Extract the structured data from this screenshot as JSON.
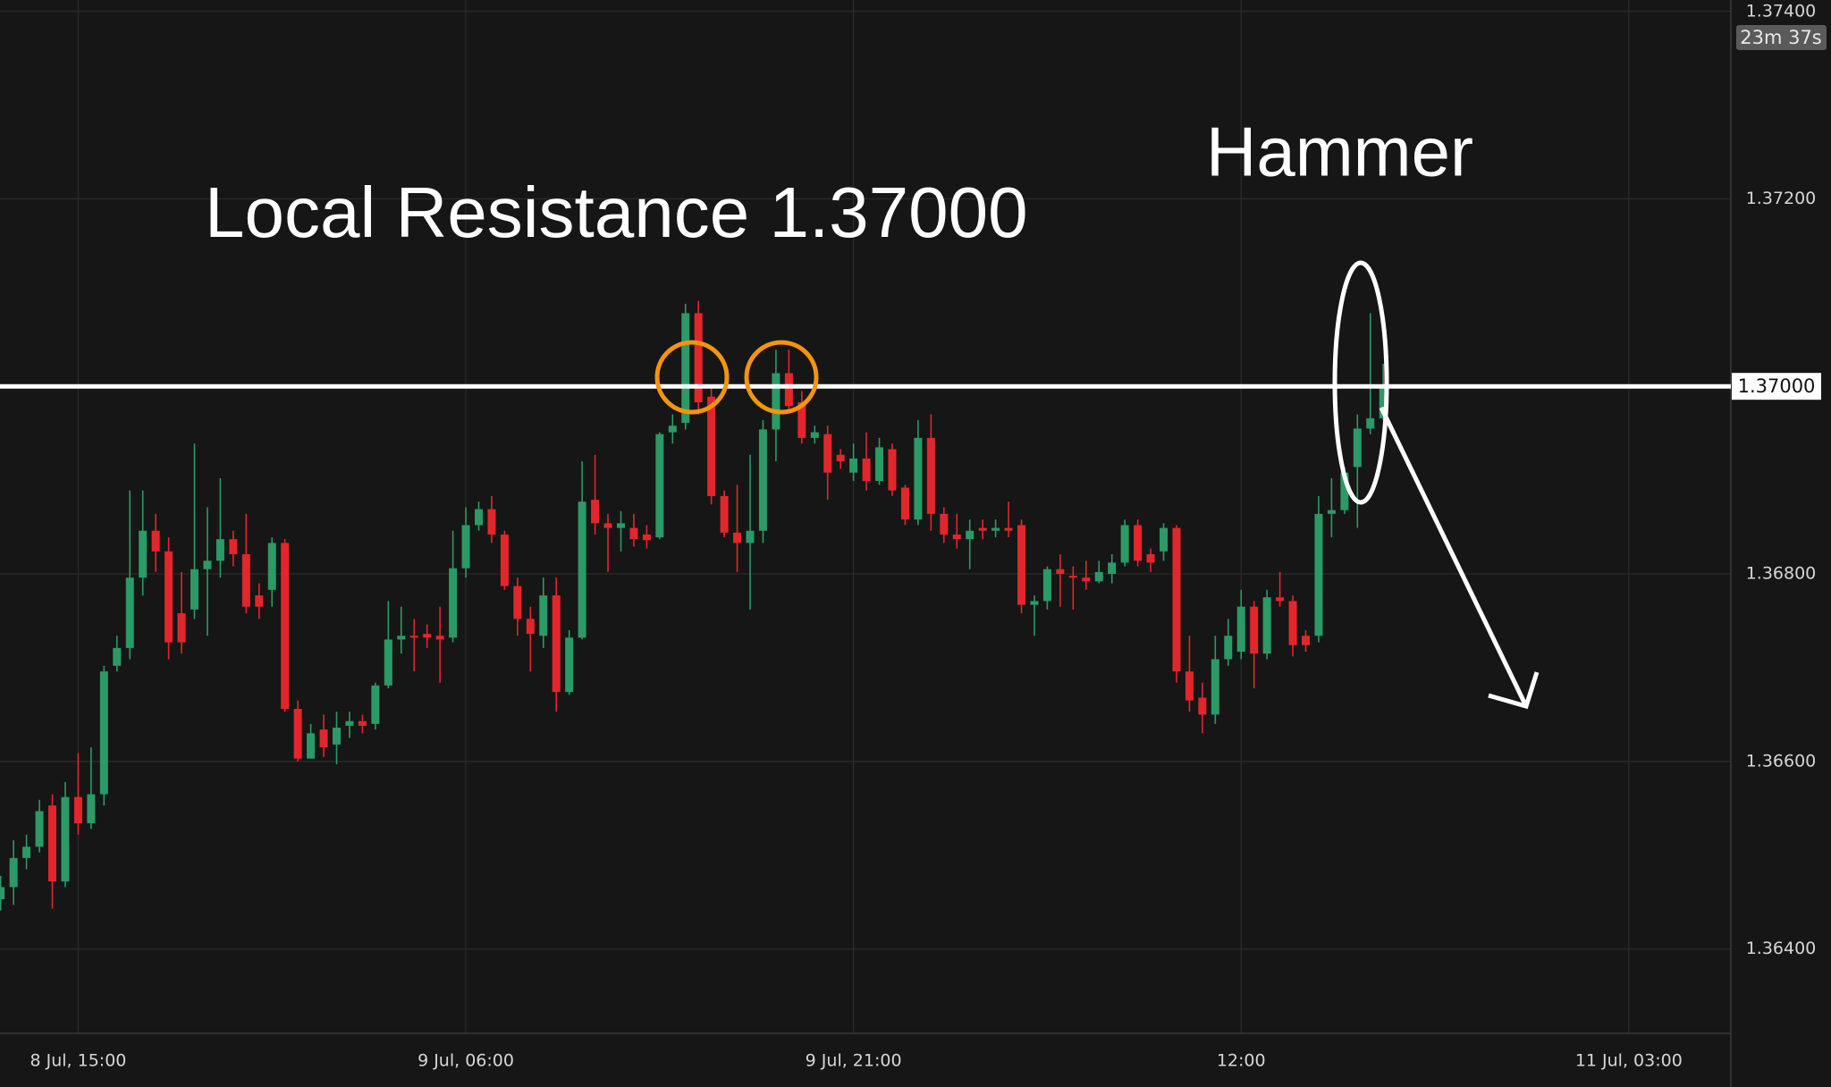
{
  "chart_data": {
    "type": "candlestick",
    "annotations": [
      "Local Resistance 1.37000",
      "Hammer"
    ],
    "open": [
      1.36453,
      1.36466,
      1.36497,
      1.36509,
      1.36553,
      1.36472,
      1.36562,
      1.36534,
      1.36565,
      1.36702,
      1.36721,
      1.36796,
      1.36846,
      1.36824,
      1.36758,
      1.36762,
      1.36805,
      1.36814,
      1.36837,
      1.36821,
      1.36777,
      1.36783,
      1.36833,
      1.36656,
      1.36603,
      1.36634,
      1.36618,
      1.36638,
      1.36643,
      1.3664,
      1.36681,
      1.3673,
      1.36734,
      1.36736,
      1.36734,
      1.36732,
      1.36806,
      1.36852,
      1.36869,
      1.36842,
      1.36787,
      1.36752,
      1.36734,
      1.36777,
      1.36674,
      1.36732,
      1.36879,
      1.36854,
      1.36849,
      1.36849,
      1.36842,
      1.36839,
      1.36951,
      1.36961,
      1.37078,
      1.36989,
      1.36883,
      1.36844,
      1.36833,
      1.36846,
      1.36954,
      1.37014,
      1.36983,
      1.36945,
      1.36949,
      1.36927,
      1.36908,
      1.36923,
      1.36899,
      1.36933,
      1.36892,
      1.36858,
      1.36945,
      1.36864,
      1.36842,
      1.36837,
      1.36849,
      1.36846,
      1.36849,
      1.36852,
      1.36767,
      1.36771,
      1.36805,
      1.36798,
      1.36796,
      1.36792,
      1.368,
      1.36812,
      1.36852,
      1.36821,
      1.36824,
      1.36849,
      1.36696,
      1.36668,
      1.3665,
      1.36709,
      1.36717,
      1.36765,
      1.36715,
      1.36775,
      1.36771,
      1.36734,
      1.36734,
      1.36864,
      1.36868,
      1.36914,
      1.36955,
      1.36966
    ],
    "high": [
      1.36478,
      1.36516,
      1.36522,
      1.36559,
      1.36565,
      1.36578,
      1.36609,
      1.36615,
      1.36702,
      1.36734,
      1.36889,
      1.36889,
      1.36864,
      1.36839,
      1.36802,
      1.36939,
      1.36871,
      1.36902,
      1.36846,
      1.36864,
      1.3679,
      1.36839,
      1.36837,
      1.36665,
      1.3664,
      1.3665,
      1.36653,
      1.36653,
      1.3665,
      1.36684,
      1.36771,
      1.36765,
      1.36752,
      1.36746,
      1.36765,
      1.36846,
      1.36871,
      1.36877,
      1.36883,
      1.36846,
      1.36796,
      1.36765,
      1.36796,
      1.36796,
      1.3674,
      1.3692,
      1.36927,
      1.36864,
      1.36867,
      1.36864,
      1.36852,
      1.36951,
      1.3697,
      1.37088,
      1.37091,
      1.37001,
      1.36889,
      1.36895,
      1.36927,
      1.36964,
      1.37039,
      1.37039,
      1.36995,
      1.36958,
      1.36958,
      1.36933,
      1.36939,
      1.36951,
      1.36945,
      1.36939,
      1.36895,
      1.36964,
      1.3697,
      1.36871,
      1.36864,
      1.36858,
      1.36858,
      1.36858,
      1.36877,
      1.36858,
      1.36777,
      1.36808,
      1.36821,
      1.36808,
      1.36814,
      1.36814,
      1.36821,
      1.36858,
      1.36858,
      1.36827,
      1.36854,
      1.36852,
      1.36734,
      1.36684,
      1.36734,
      1.36752,
      1.36783,
      1.36771,
      1.36783,
      1.36802,
      1.36777,
      1.3674,
      1.36883,
      1.36902,
      1.36914,
      1.3697,
      1.37078,
      1.37024
    ],
    "low": [
      1.36441,
      1.36447,
      1.36485,
      1.36503,
      1.36443,
      1.36466,
      1.36522,
      1.36528,
      1.36553,
      1.36696,
      1.36709,
      1.36777,
      1.36802,
      1.36709,
      1.36715,
      1.36752,
      1.36734,
      1.36796,
      1.36808,
      1.36758,
      1.36752,
      1.36765,
      1.36653,
      1.366,
      1.36603,
      1.36605,
      1.36597,
      1.36625,
      1.3663,
      1.36634,
      1.36678,
      1.36715,
      1.36696,
      1.36721,
      1.36684,
      1.36727,
      1.36796,
      1.36846,
      1.36833,
      1.36783,
      1.36734,
      1.36696,
      1.36721,
      1.36653,
      1.36671,
      1.3673,
      1.36842,
      1.36802,
      1.36824,
      1.36829,
      1.36827,
      1.36837,
      1.36939,
      1.36954,
      1.3697,
      1.36874,
      1.36839,
      1.36802,
      1.36762,
      1.36833,
      1.3692,
      1.36976,
      1.36939,
      1.36939,
      1.36879,
      1.36912,
      1.36899,
      1.36889,
      1.36895,
      1.36883,
      1.36852,
      1.36852,
      1.36846,
      1.36833,
      1.36827,
      1.36805,
      1.36837,
      1.36839,
      1.36839,
      1.36758,
      1.36734,
      1.36762,
      1.36765,
      1.36762,
      1.36783,
      1.3679,
      1.3679,
      1.36808,
      1.36808,
      1.36802,
      1.36814,
      1.36684,
      1.36653,
      1.3663,
      1.3664,
      1.36702,
      1.36709,
      1.36678,
      1.36709,
      1.36765,
      1.36712,
      1.36717,
      1.36727,
      1.36839,
      1.36864,
      1.36849,
      1.36949,
      1.36964
    ],
    "close": [
      1.36466,
      1.36497,
      1.36509,
      1.36547,
      1.36472,
      1.36562,
      1.36534,
      1.36565,
      1.36696,
      1.36721,
      1.36796,
      1.36846,
      1.36824,
      1.36727,
      1.36727,
      1.36805,
      1.36814,
      1.36837,
      1.36821,
      1.36765,
      1.36765,
      1.36833,
      1.36656,
      1.36603,
      1.3663,
      1.36615,
      1.36636,
      1.36643,
      1.36638,
      1.36681,
      1.3673,
      1.36734,
      1.36732,
      1.36732,
      1.3673,
      1.36806,
      1.36852,
      1.36869,
      1.36842,
      1.36787,
      1.36752,
      1.36736,
      1.36777,
      1.36674,
      1.36732,
      1.36877,
      1.36854,
      1.36849,
      1.36854,
      1.36837,
      1.36836,
      1.36949,
      1.36958,
      1.37078,
      1.36983,
      1.36883,
      1.36844,
      1.36833,
      1.36846,
      1.36954,
      1.37014,
      1.36979,
      1.36945,
      1.36951,
      1.36908,
      1.3692,
      1.36923,
      1.36899,
      1.36935,
      1.36889,
      1.36858,
      1.36945,
      1.36864,
      1.36842,
      1.36837,
      1.36846,
      1.36846,
      1.36849,
      1.36846,
      1.36767,
      1.36771,
      1.36805,
      1.368,
      1.36796,
      1.36792,
      1.36802,
      1.36812,
      1.36852,
      1.36814,
      1.36812,
      1.36849,
      1.36696,
      1.36665,
      1.3665,
      1.36709,
      1.36734,
      1.36765,
      1.36715,
      1.36775,
      1.36771,
      1.36724,
      1.36724,
      1.36864,
      1.36868,
      1.36908,
      1.36955,
      1.36966,
      1.36999
    ],
    "up_color": "#2b9a66",
    "down_color": "#e3262c",
    "xlim": [
      -0.05,
      133.9
    ],
    "xticks": [
      {
        "value": 6,
        "label": "8 Jul, 15:00"
      },
      {
        "value": 36,
        "label": "9 Jul, 06:00"
      },
      {
        "value": 66,
        "label": "9 Jul, 21:00"
      },
      {
        "value": 96,
        "label": "12:00"
      },
      {
        "value": 126,
        "label": "11 Jul, 03:00"
      }
    ],
    "ylim": [
      1.3631,
      1.37412
    ],
    "yticks": [
      {
        "value": 1.364,
        "label": "1.36400"
      },
      {
        "value": 1.366,
        "label": "1.36600"
      },
      {
        "value": 1.368,
        "label": "1.36800"
      },
      {
        "value": 1.37,
        "label": "1.37000"
      },
      {
        "value": 1.372,
        "label": "1.37200"
      },
      {
        "value": 1.374,
        "label": "1.37400"
      }
    ],
    "grid": true,
    "level": {
      "value": 1.37,
      "label": "1.37000"
    },
    "countdown": "23m 37s"
  }
}
